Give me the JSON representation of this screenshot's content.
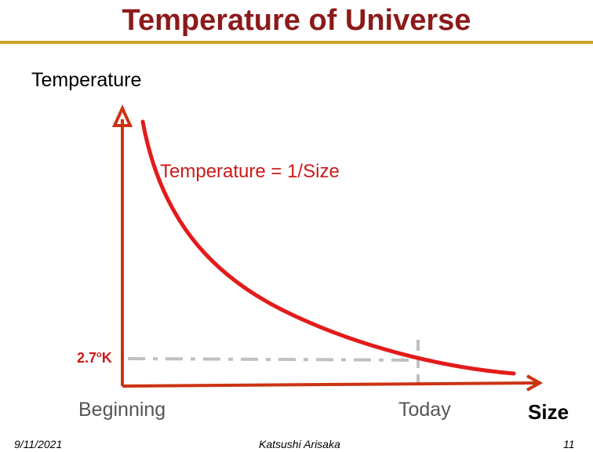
{
  "slide": {
    "title": "Temperature of Universe",
    "title_color": "#8c1a1a",
    "rule_color": "#c9a227"
  },
  "diagram": {
    "y_axis_label": "Temperature",
    "x_axis_label": "Size",
    "equation": "Temperature = 1/Size",
    "cmb_value": "2.7",
    "cmb_degree": "o",
    "cmb_unit": "K",
    "x_start_label": "Beginning",
    "x_today_label": "Today",
    "axis_color": "#cc3311",
    "curve_color": "#e31b1b",
    "guide_color": "#c0c0c0"
  },
  "footer": {
    "date": "9/11/2021",
    "author": "Katsushi Arisaka",
    "page": "11"
  }
}
